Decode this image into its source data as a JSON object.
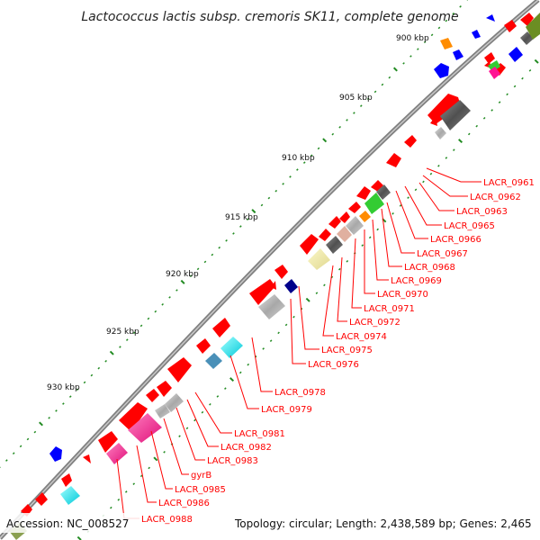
{
  "title": "Lactococcus lactis subsp. cremoris SK11, complete genome",
  "footer": {
    "accession": "Accession: NC_008527",
    "topology": "Topology: circular; Length: 2,438,589 bp; Genes: 2,465"
  },
  "scale_ticks": [
    "900 kbp",
    "905 kbp",
    "910 kbp",
    "915 kbp",
    "920 kbp",
    "925 kbp",
    "930 kbp"
  ],
  "gene_labels": [
    "LACR_0961",
    "LACR_0962",
    "LACR_0963",
    "LACR_0965",
    "LACR_0966",
    "LACR_0967",
    "LACR_0968",
    "LACR_0969",
    "LACR_0970",
    "LACR_0971",
    "LACR_0972",
    "LACR_0974",
    "LACR_0975",
    "LACR_0976",
    "LACR_0978",
    "LACR_0979",
    "LACR_0981",
    "LACR_0982",
    "LACR_0983",
    "gyrB",
    "LACR_0985",
    "LACR_0986",
    "LACR_0988"
  ],
  "colors": {
    "cds_red": "#ff0000",
    "backbone": "#808080",
    "tick": "#228b22",
    "blue": "#0000ff",
    "navy": "#00008b",
    "orange": "#ff8c00",
    "green": "#33cc33",
    "magenta": "#ff1493",
    "cyan": "#00e5ee",
    "gray": "#a0a0a0",
    "darkgray": "#606060",
    "khaki": "#eee8aa",
    "olive": "#6b8e23"
  }
}
